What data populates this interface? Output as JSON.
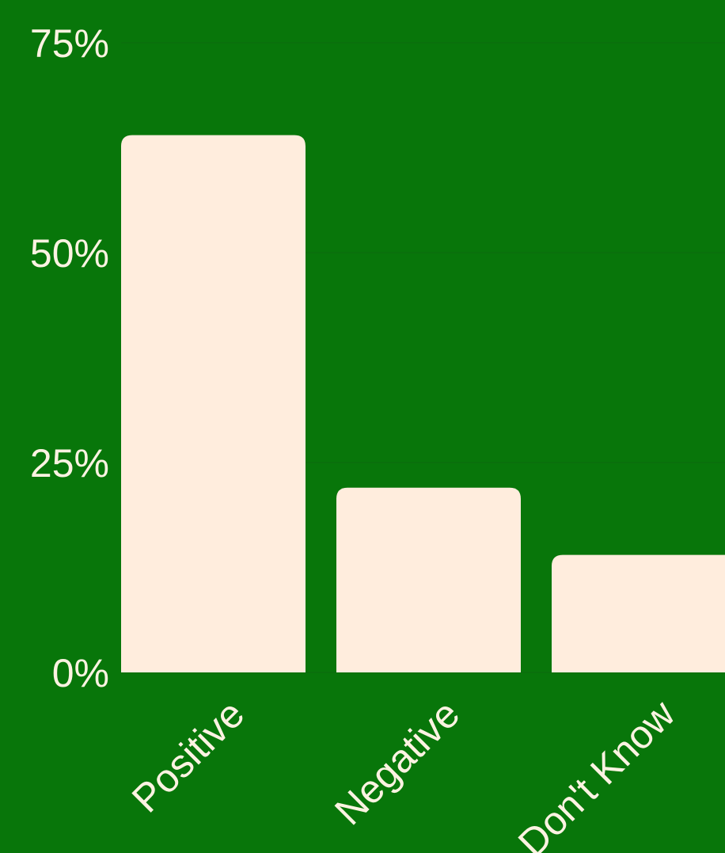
{
  "colors": {
    "background": "#08760a",
    "bar": "#ffeddd",
    "text": "#fdf3e2",
    "grid": "#0a6e0c"
  },
  "chart_data": {
    "type": "bar",
    "categories": [
      "Positive",
      "Negative",
      "Don't Know"
    ],
    "values": [
      64,
      22,
      14
    ],
    "ylim": [
      0,
      75
    ],
    "yticks": [
      0,
      25,
      50,
      75
    ],
    "ytick_labels": [
      "0%",
      "25%",
      "50%",
      "75%"
    ],
    "grid": true,
    "title": "",
    "xlabel": "",
    "ylabel": ""
  }
}
